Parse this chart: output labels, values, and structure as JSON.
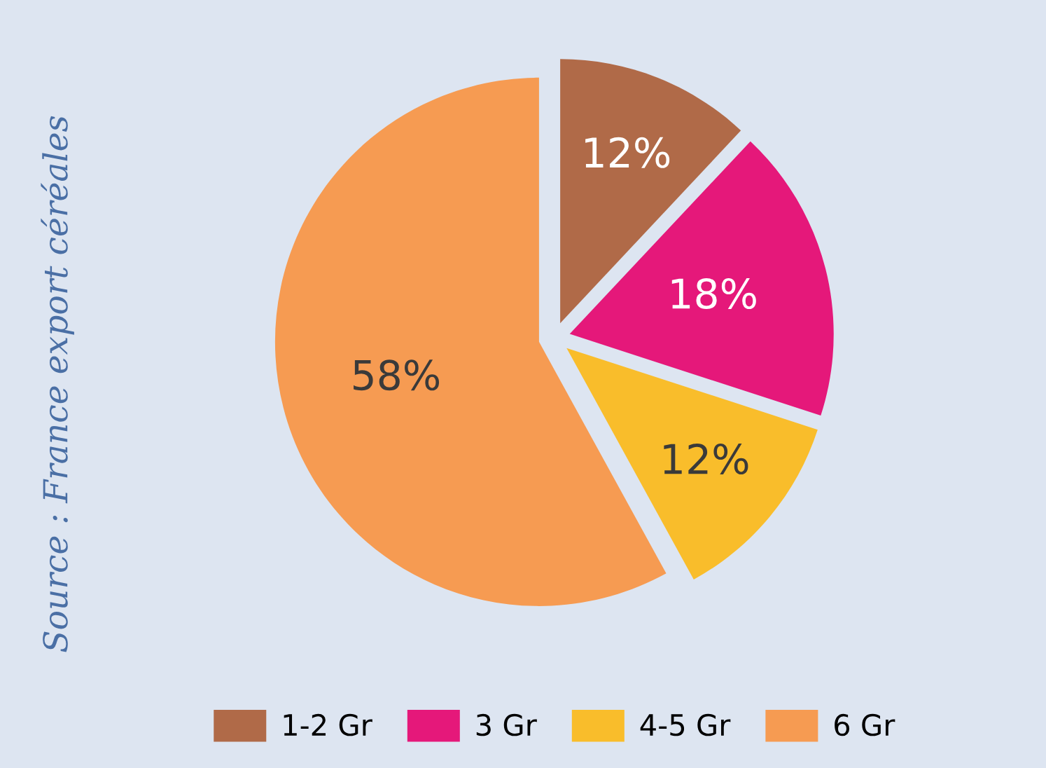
{
  "chart_data": {
    "type": "pie",
    "categories": [
      "1-2 Gr",
      "3 Gr",
      "4-5 Gr",
      "6 Gr"
    ],
    "values": [
      12,
      18,
      12,
      58
    ],
    "colors": [
      "#b06a48",
      "#e5187a",
      "#f9bd2b",
      "#f69b52"
    ],
    "data_labels": true,
    "value_labels": [
      "12%",
      "18%",
      "12%",
      "58%"
    ],
    "legend": "bottom",
    "annotations": [
      "Source : France export céréales"
    ]
  }
}
